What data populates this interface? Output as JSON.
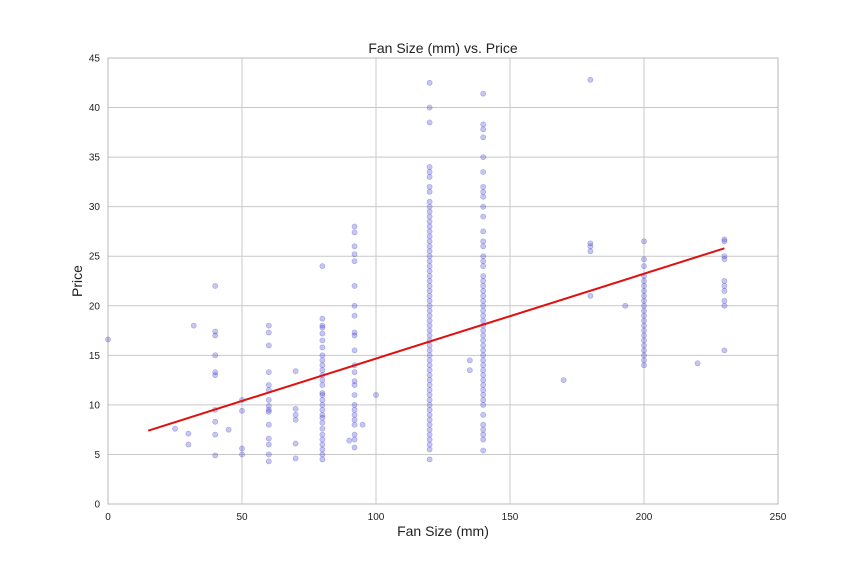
{
  "chart_data": {
    "type": "scatter",
    "title": "Fan Size (mm) vs. Price",
    "xlabel": "Fan Size (mm)",
    "ylabel": "Price",
    "xlim": [
      0,
      250
    ],
    "ylim": [
      0,
      45
    ],
    "xticks": [
      0,
      50,
      100,
      150,
      200,
      250
    ],
    "yticks": [
      0,
      5,
      10,
      15,
      20,
      25,
      30,
      35,
      40,
      45
    ],
    "grid": true,
    "colors": {
      "points": "#3333cc",
      "fit_line": "#e01010",
      "grid": "#c8c8c8",
      "frame": "#b8b8b8",
      "text": "#222222"
    },
    "series": [
      {
        "points": [
          [
            0,
            16.6
          ],
          [
            25,
            7.6
          ],
          [
            30,
            7.1
          ],
          [
            30,
            6.0
          ],
          [
            32,
            18.0
          ],
          [
            40,
            22.0
          ],
          [
            40,
            17.4
          ],
          [
            40,
            17.0
          ],
          [
            40,
            15.0
          ],
          [
            40,
            13.3
          ],
          [
            40,
            13.0
          ],
          [
            40,
            9.5
          ],
          [
            40,
            8.3
          ],
          [
            40,
            7.0
          ],
          [
            40,
            4.9
          ],
          [
            45,
            7.5
          ],
          [
            50,
            10.5
          ],
          [
            50,
            9.4
          ],
          [
            50,
            5.6
          ],
          [
            50,
            5.0
          ],
          [
            60,
            18.0
          ],
          [
            60,
            17.3
          ],
          [
            60,
            16.0
          ],
          [
            60,
            13.3
          ],
          [
            60,
            12.0
          ],
          [
            60,
            11.5
          ],
          [
            60,
            10.5
          ],
          [
            60,
            9.9
          ],
          [
            60,
            9.5
          ],
          [
            60,
            9.3
          ],
          [
            60,
            8.0
          ],
          [
            60,
            6.6
          ],
          [
            60,
            6.0
          ],
          [
            60,
            5.0
          ],
          [
            60,
            4.3
          ],
          [
            70,
            13.4
          ],
          [
            70,
            9.6
          ],
          [
            70,
            9.0
          ],
          [
            70,
            8.5
          ],
          [
            70,
            6.1
          ],
          [
            70,
            4.6
          ],
          [
            80,
            24.0
          ],
          [
            80,
            18.7
          ],
          [
            80,
            18.0
          ],
          [
            80,
            17.8
          ],
          [
            80,
            17.2
          ],
          [
            80,
            16.5
          ],
          [
            80,
            15.8
          ],
          [
            80,
            15.0
          ],
          [
            80,
            14.5
          ],
          [
            80,
            14.0
          ],
          [
            80,
            13.5
          ],
          [
            80,
            13.0
          ],
          [
            80,
            12.5
          ],
          [
            80,
            12.0
          ],
          [
            80,
            11.2
          ],
          [
            80,
            11.0
          ],
          [
            80,
            10.5
          ],
          [
            80,
            10.0
          ],
          [
            80,
            9.5
          ],
          [
            80,
            9.0
          ],
          [
            80,
            8.7
          ],
          [
            80,
            8.2
          ],
          [
            80,
            7.6
          ],
          [
            80,
            7.0
          ],
          [
            80,
            6.5
          ],
          [
            80,
            6.0
          ],
          [
            80,
            5.5
          ],
          [
            80,
            5.0
          ],
          [
            80,
            4.5
          ],
          [
            90,
            6.4
          ],
          [
            92,
            28.0
          ],
          [
            92,
            27.4
          ],
          [
            92,
            26.0
          ],
          [
            92,
            25.2
          ],
          [
            92,
            24.5
          ],
          [
            92,
            22.0
          ],
          [
            92,
            20.0
          ],
          [
            92,
            19.0
          ],
          [
            92,
            17.3
          ],
          [
            92,
            17.0
          ],
          [
            92,
            15.5
          ],
          [
            92,
            14.0
          ],
          [
            92,
            13.3
          ],
          [
            92,
            12.4
          ],
          [
            92,
            12.0
          ],
          [
            92,
            11.0
          ],
          [
            92,
            10.0
          ],
          [
            92,
            9.5
          ],
          [
            92,
            9.0
          ],
          [
            92,
            8.5
          ],
          [
            92,
            8.0
          ],
          [
            92,
            7.0
          ],
          [
            92,
            6.5
          ],
          [
            92,
            5.7
          ],
          [
            95,
            8.0
          ],
          [
            100,
            11.0
          ],
          [
            120,
            42.5
          ],
          [
            120,
            40.0
          ],
          [
            120,
            38.5
          ],
          [
            120,
            34.0
          ],
          [
            120,
            33.5
          ],
          [
            120,
            33.0
          ],
          [
            120,
            32.0
          ],
          [
            120,
            31.5
          ],
          [
            120,
            30.5
          ],
          [
            120,
            30.0
          ],
          [
            120,
            29.5
          ],
          [
            120,
            29.0
          ],
          [
            120,
            28.5
          ],
          [
            120,
            28.0
          ],
          [
            120,
            27.5
          ],
          [
            120,
            27.0
          ],
          [
            120,
            26.5
          ],
          [
            120,
            26.0
          ],
          [
            120,
            25.5
          ],
          [
            120,
            25.0
          ],
          [
            120,
            24.5
          ],
          [
            120,
            24.0
          ],
          [
            120,
            23.5
          ],
          [
            120,
            23.0
          ],
          [
            120,
            22.5
          ],
          [
            120,
            22.0
          ],
          [
            120,
            21.5
          ],
          [
            120,
            21.0
          ],
          [
            120,
            20.5
          ],
          [
            120,
            20.0
          ],
          [
            120,
            19.5
          ],
          [
            120,
            19.0
          ],
          [
            120,
            18.5
          ],
          [
            120,
            18.0
          ],
          [
            120,
            17.5
          ],
          [
            120,
            17.0
          ],
          [
            120,
            16.5
          ],
          [
            120,
            16.0
          ],
          [
            120,
            15.5
          ],
          [
            120,
            15.0
          ],
          [
            120,
            14.5
          ],
          [
            120,
            14.0
          ],
          [
            120,
            13.5
          ],
          [
            120,
            13.0
          ],
          [
            120,
            12.5
          ],
          [
            120,
            12.0
          ],
          [
            120,
            11.5
          ],
          [
            120,
            11.0
          ],
          [
            120,
            10.5
          ],
          [
            120,
            10.0
          ],
          [
            120,
            9.5
          ],
          [
            120,
            9.0
          ],
          [
            120,
            8.5
          ],
          [
            120,
            8.0
          ],
          [
            120,
            7.5
          ],
          [
            120,
            7.0
          ],
          [
            120,
            6.5
          ],
          [
            120,
            6.0
          ],
          [
            120,
            5.5
          ],
          [
            120,
            4.5
          ],
          [
            135,
            14.5
          ],
          [
            135,
            13.5
          ],
          [
            140,
            41.4
          ],
          [
            140,
            38.3
          ],
          [
            140,
            37.8
          ],
          [
            140,
            37.0
          ],
          [
            140,
            35.0
          ],
          [
            140,
            33.5
          ],
          [
            140,
            32.0
          ],
          [
            140,
            31.5
          ],
          [
            140,
            31.0
          ],
          [
            140,
            30.0
          ],
          [
            140,
            29.0
          ],
          [
            140,
            27.5
          ],
          [
            140,
            26.5
          ],
          [
            140,
            26.0
          ],
          [
            140,
            25.0
          ],
          [
            140,
            24.5
          ],
          [
            140,
            24.0
          ],
          [
            140,
            23.0
          ],
          [
            140,
            22.5
          ],
          [
            140,
            22.0
          ],
          [
            140,
            21.5
          ],
          [
            140,
            21.0
          ],
          [
            140,
            20.5
          ],
          [
            140,
            20.0
          ],
          [
            140,
            19.5
          ],
          [
            140,
            19.0
          ],
          [
            140,
            18.5
          ],
          [
            140,
            18.0
          ],
          [
            140,
            17.5
          ],
          [
            140,
            17.0
          ],
          [
            140,
            16.5
          ],
          [
            140,
            16.0
          ],
          [
            140,
            15.5
          ],
          [
            140,
            15.0
          ],
          [
            140,
            14.5
          ],
          [
            140,
            14.0
          ],
          [
            140,
            13.5
          ],
          [
            140,
            13.0
          ],
          [
            140,
            12.5
          ],
          [
            140,
            12.0
          ],
          [
            140,
            11.5
          ],
          [
            140,
            11.0
          ],
          [
            140,
            10.5
          ],
          [
            140,
            10.0
          ],
          [
            140,
            9.0
          ],
          [
            140,
            8.0
          ],
          [
            140,
            7.5
          ],
          [
            140,
            7.0
          ],
          [
            140,
            6.5
          ],
          [
            140,
            5.4
          ],
          [
            170,
            12.5
          ],
          [
            180,
            42.8
          ],
          [
            180,
            26.3
          ],
          [
            180,
            26.0
          ],
          [
            180,
            25.5
          ],
          [
            180,
            21.0
          ],
          [
            193,
            20.0
          ],
          [
            200,
            26.5
          ],
          [
            200,
            24.7
          ],
          [
            200,
            24.0
          ],
          [
            200,
            23.0
          ],
          [
            200,
            22.5
          ],
          [
            200,
            22.0
          ],
          [
            200,
            21.5
          ],
          [
            200,
            21.0
          ],
          [
            200,
            20.5
          ],
          [
            200,
            20.0
          ],
          [
            200,
            19.5
          ],
          [
            200,
            19.0
          ],
          [
            200,
            18.5
          ],
          [
            200,
            18.0
          ],
          [
            200,
            17.5
          ],
          [
            200,
            17.0
          ],
          [
            200,
            16.5
          ],
          [
            200,
            16.0
          ],
          [
            200,
            15.5
          ],
          [
            200,
            15.0
          ],
          [
            200,
            14.5
          ],
          [
            200,
            14.0
          ],
          [
            220,
            14.2
          ],
          [
            230,
            26.7
          ],
          [
            230,
            26.5
          ],
          [
            230,
            25.0
          ],
          [
            230,
            24.7
          ],
          [
            230,
            22.5
          ],
          [
            230,
            22.0
          ],
          [
            230,
            21.5
          ],
          [
            230,
            20.5
          ],
          [
            230,
            20.0
          ],
          [
            230,
            15.5
          ]
        ]
      }
    ],
    "fit_line": {
      "x": [
        15,
        230
      ],
      "y": [
        7.4,
        25.8
      ]
    }
  }
}
